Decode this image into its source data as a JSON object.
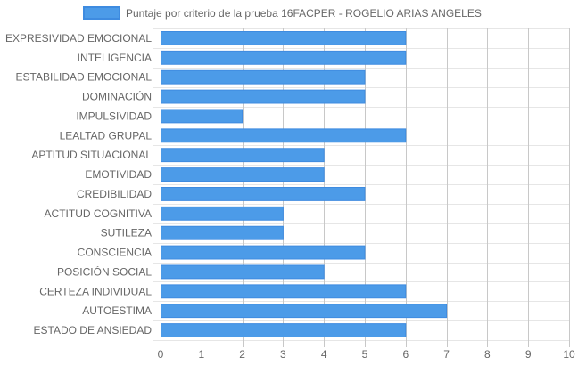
{
  "chart_data": {
    "type": "bar",
    "orientation": "horizontal",
    "legend": {
      "position": "top",
      "label": "Puntaje por criterio de la prueba 16FACPER - ROGELIO ARIAS ANGELES"
    },
    "categories": [
      "EXPRESIVIDAD EMOCIONAL",
      "INTELIGENCIA",
      "ESTABILIDAD EMOCIONAL",
      "DOMINACIÓN",
      "IMPULSIVIDAD",
      "LEALTAD GRUPAL",
      "APTITUD SITUACIONAL",
      "EMOTIVIDAD",
      "CREDIBILIDAD",
      "ACTITUD COGNITIVA",
      "SUTILEZA",
      "CONSCIENCIA",
      "POSICIÓN SOCIAL",
      "CERTEZA INDIVIDUAL",
      "AUTOESTIMA",
      "ESTADO DE ANSIEDAD"
    ],
    "series": [
      {
        "name": "Puntaje por criterio de la prueba 16FACPER - ROGELIO ARIAS ANGELES",
        "values": [
          6,
          6,
          5,
          5,
          2,
          6,
          4,
          4,
          5,
          3,
          3,
          5,
          4,
          6,
          7,
          6
        ]
      }
    ],
    "xlim": [
      0,
      10
    ],
    "xticks": [
      "0",
      "1",
      "2",
      "3",
      "4",
      "5",
      "6",
      "7",
      "8",
      "9",
      "10"
    ],
    "grid": true,
    "colors": {
      "bar_fill": "#4c9be8",
      "bar_stroke": "#3e8be0",
      "grid": "#e6e6e6",
      "grid_major": "#c8c8c8",
      "text": "#666666"
    }
  }
}
